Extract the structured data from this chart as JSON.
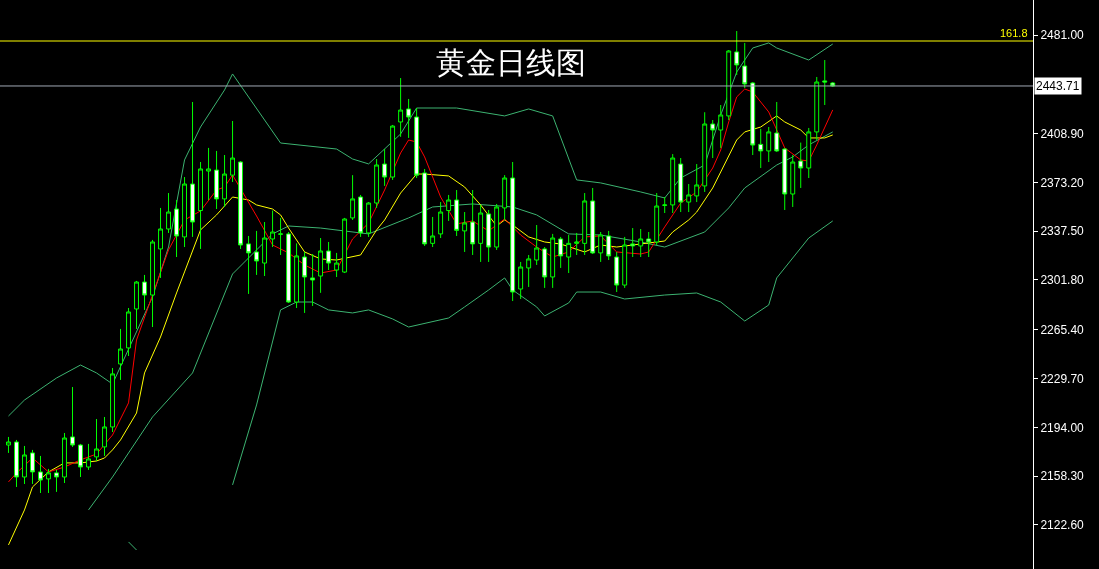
{
  "chart_data": {
    "type": "candlestick",
    "title": "黄金日线图",
    "color": "#00ff00",
    "categories": [
      null,
      null,
      null,
      null,
      null,
      null,
      null,
      null,
      null,
      null,
      null,
      null,
      null,
      null,
      null,
      null,
      null,
      null,
      null,
      null,
      null,
      null,
      null,
      null,
      null,
      null,
      null,
      null,
      null,
      null,
      null,
      null,
      null,
      null,
      null,
      null,
      null,
      null,
      null,
      null,
      null,
      null,
      null,
      null,
      null,
      null,
      null,
      null,
      null,
      null,
      null,
      null,
      null,
      null,
      null,
      null,
      null,
      null,
      null,
      null,
      null,
      null,
      null,
      null,
      null,
      null,
      null,
      null,
      null,
      null,
      null,
      null,
      null,
      null,
      null,
      null,
      null,
      null,
      null,
      null,
      null,
      null,
      null,
      null,
      null,
      null,
      null,
      null,
      null,
      null,
      null,
      null,
      null,
      null,
      null,
      null,
      null,
      null,
      null,
      null,
      null,
      null,
      null,
      null
    ],
    "ohlc": [
      [
        2181.1,
        2187.0,
        2175.3,
        2183.3
      ],
      [
        2183.3,
        2184.8,
        2150.4,
        2157.7
      ],
      [
        2157.7,
        2180.4,
        2152.6,
        2173.8
      ],
      [
        2175.3,
        2177.5,
        2152.6,
        2161.4
      ],
      [
        2161.4,
        2173.1,
        2146.0,
        2155.5
      ],
      [
        2156.3,
        2163.6,
        2146.0,
        2160.7
      ],
      [
        2160.7,
        2162.9,
        2146.8,
        2157.7
      ],
      [
        2157.7,
        2189.9,
        2153.3,
        2186.2
      ],
      [
        2187.0,
        2223.5,
        2179.7,
        2181.1
      ],
      [
        2181.1,
        2181.9,
        2157.7,
        2165.0
      ],
      [
        2165.0,
        2181.9,
        2162.9,
        2170.9
      ],
      [
        2172.4,
        2200.1,
        2169.4,
        2178.2
      ],
      [
        2179.7,
        2201.6,
        2173.1,
        2194.3
      ],
      [
        2194.3,
        2237.4,
        2190.6,
        2233.1
      ],
      [
        2240.4,
        2266.0,
        2228.7,
        2251.3
      ],
      [
        2252.1,
        2281.3,
        2246.2,
        2278.4
      ],
      [
        2280.6,
        2301.1,
        2266.0,
        2300.3
      ],
      [
        2300.3,
        2305.5,
        2279.9,
        2290.8
      ],
      [
        2290.8,
        2331.1,
        2267.4,
        2329.6
      ],
      [
        2324.5,
        2354.5,
        2303.3,
        2339.1
      ],
      [
        2339.1,
        2365.4,
        2336.2,
        2351.5
      ],
      [
        2353.7,
        2360.3,
        2318.6,
        2334.0
      ],
      [
        2333.3,
        2377.1,
        2325.9,
        2372.0
      ],
      [
        2372.0,
        2432.0,
        2333.3,
        2344.2
      ],
      [
        2352.6,
        2388.1,
        2324.5,
        2383.0
      ],
      [
        2381.5,
        2398.4,
        2360.3,
        2383.0
      ],
      [
        2382.2,
        2396.2,
        2353.7,
        2361.1
      ],
      [
        2361.1,
        2393.2,
        2355.2,
        2379.3
      ],
      [
        2378.5,
        2418.1,
        2373.5,
        2391.0
      ],
      [
        2388.1,
        2388.8,
        2324.5,
        2327.4
      ],
      [
        2328.2,
        2334.0,
        2291.6,
        2321.6
      ],
      [
        2322.3,
        2337.7,
        2305.5,
        2315.7
      ],
      [
        2314.2,
        2344.2,
        2304.7,
        2332.5
      ],
      [
        2331.8,
        2352.6,
        2325.9,
        2336.9
      ],
      [
        2335.2,
        2347.2,
        2320.1,
        2335.5
      ],
      [
        2335.5,
        2336.9,
        2285.0,
        2285.7
      ],
      [
        2285.7,
        2328.6,
        2281.3,
        2319.4
      ],
      [
        2318.6,
        2322.3,
        2277.7,
        2304.0
      ],
      [
        2303.3,
        2320.8,
        2282.8,
        2301.8
      ],
      [
        2304.7,
        2332.5,
        2292.4,
        2323.0
      ],
      [
        2323.0,
        2329.6,
        2309.1,
        2314.2
      ],
      [
        2309.1,
        2321.6,
        2304.0,
        2314.2
      ],
      [
        2307.6,
        2347.2,
        2306.9,
        2346.4
      ],
      [
        2347.2,
        2378.5,
        2345.7,
        2361.1
      ],
      [
        2362.5,
        2364.0,
        2333.3,
        2336.2
      ],
      [
        2336.2,
        2358.8,
        2333.3,
        2358.1
      ],
      [
        2358.1,
        2390.3,
        2354.5,
        2385.9
      ],
      [
        2386.6,
        2397.6,
        2370.6,
        2377.1
      ],
      [
        2377.1,
        2415.2,
        2375.0,
        2414.4
      ],
      [
        2417.4,
        2449.5,
        2406.5,
        2426.1
      ],
      [
        2426.9,
        2434.2,
        2405.7,
        2421.0
      ],
      [
        2421.0,
        2427.6,
        2376.4,
        2378.5
      ],
      [
        2380.1,
        2383.0,
        2326.7,
        2328.2
      ],
      [
        2328.6,
        2347.9,
        2325.9,
        2334.0
      ],
      [
        2335.5,
        2358.8,
        2332.5,
        2351.5
      ],
      [
        2352.6,
        2364.0,
        2345.0,
        2360.3
      ],
      [
        2360.3,
        2367.6,
        2334.0,
        2338.1
      ],
      [
        2337.7,
        2351.5,
        2322.3,
        2343.5
      ],
      [
        2344.2,
        2367.6,
        2320.1,
        2328.2
      ],
      [
        2328.6,
        2356.7,
        2315.0,
        2350.8
      ],
      [
        2350.1,
        2353.0,
        2315.0,
        2325.9
      ],
      [
        2325.9,
        2357.4,
        2323.8,
        2355.2
      ],
      [
        2354.5,
        2378.5,
        2345.7,
        2376.4
      ],
      [
        2376.4,
        2388.1,
        2286.4,
        2293.0
      ],
      [
        2295.2,
        2315.0,
        2287.9,
        2311.3
      ],
      [
        2310.6,
        2320.1,
        2296.7,
        2317.2
      ],
      [
        2316.4,
        2342.0,
        2312.8,
        2325.2
      ],
      [
        2324.5,
        2325.9,
        2296.0,
        2304.0
      ],
      [
        2304.0,
        2335.5,
        2296.0,
        2332.5
      ],
      [
        2331.8,
        2333.3,
        2310.6,
        2319.4
      ],
      [
        2318.6,
        2334.7,
        2306.9,
        2328.6
      ],
      [
        2328.6,
        2336.2,
        2320.1,
        2329.6
      ],
      [
        2328.6,
        2365.4,
        2320.1,
        2359.6
      ],
      [
        2359.6,
        2369.1,
        2320.8,
        2321.6
      ],
      [
        2321.6,
        2336.9,
        2315.0,
        2334.7
      ],
      [
        2334.0,
        2337.7,
        2316.4,
        2319.4
      ],
      [
        2318.6,
        2322.3,
        2293.0,
        2298.1
      ],
      [
        2298.1,
        2333.3,
        2296.0,
        2327.4
      ],
      [
        2328.2,
        2339.8,
        2318.6,
        2326.7
      ],
      [
        2326.7,
        2339.1,
        2318.6,
        2331.8
      ],
      [
        2331.8,
        2336.9,
        2318.6,
        2329.6
      ],
      [
        2329.6,
        2365.4,
        2327.4,
        2355.9
      ],
      [
        2356.3,
        2362.5,
        2350.8,
        2356.7
      ],
      [
        2356.7,
        2393.9,
        2350.8,
        2391.0
      ],
      [
        2386.6,
        2391.0,
        2351.5,
        2358.8
      ],
      [
        2358.8,
        2372.0,
        2351.5,
        2364.0
      ],
      [
        2363.3,
        2386.6,
        2358.8,
        2371.3
      ],
      [
        2370.6,
        2424.5,
        2366.2,
        2415.9
      ],
      [
        2415.9,
        2418.8,
        2391.0,
        2411.5
      ],
      [
        2411.5,
        2429.8,
        2398.4,
        2422.5
      ],
      [
        2421.8,
        2470.0,
        2418.8,
        2469.3
      ],
      [
        2468.6,
        2483.9,
        2451.7,
        2459.1
      ],
      [
        2458.3,
        2475.2,
        2442.2,
        2445.2
      ],
      [
        2445.9,
        2446.6,
        2393.2,
        2400.5
      ],
      [
        2401.0,
        2412.3,
        2383.7,
        2396.2
      ],
      [
        2396.2,
        2413.7,
        2388.1,
        2410.1
      ],
      [
        2409.3,
        2432.0,
        2395.4,
        2396.2
      ],
      [
        2397.6,
        2398.4,
        2353.0,
        2364.7
      ],
      [
        2364.7,
        2393.2,
        2355.2,
        2388.1
      ],
      [
        2388.8,
        2402.3,
        2369.1,
        2383.7
      ],
      [
        2383.7,
        2413.0,
        2376.4,
        2410.1
      ],
      [
        2410.1,
        2450.3,
        2404.2,
        2446.6
      ],
      [
        2447.4,
        2462.7,
        2429.8,
        2446.6
      ],
      [
        2445.9,
        2446.6,
        2443.0,
        2443.71
      ]
    ],
    "series": [
      {
        "type": "line",
        "color": "#3cb371",
        "values": [
          2202.3,
          null,
          2214.0,
          null,
          null,
          null,
          2230.1,
          null,
          null,
          2239.6,
          null,
          2233.8,
          null,
          2225.7,
          null,
          null,
          null,
          null,
          2289.4,
          null,
          2325.9,
          null,
          2389.6,
          null,
          2413.7,
          null,
          null,
          2440.8,
          2452.5,
          null,
          null,
          null,
          null,
          null,
          2402.0,
          null,
          null,
          null,
          null,
          null,
          null,
          2397.6,
          null,
          2390.3,
          null,
          2386.7,
          null,
          null,
          null,
          2408.6,
          null,
          2427.6,
          null,
          null,
          null,
          null,
          2427.6,
          null,
          null,
          null,
          null,
          null,
          2421.8,
          null,
          null,
          2426.9,
          null,
          null,
          2421.8,
          null,
          null,
          2375.0,
          null,
          null,
          2372.8,
          null,
          null,
          null,
          null,
          2366.2,
          null,
          null,
          2361.8,
          null,
          2376.4,
          null,
          null,
          2385.9,
          null,
          2422.5,
          null,
          2453.9,
          null,
          2471.5,
          null,
          2475.2,
          2471.5,
          null,
          null,
          null,
          2462.7,
          null,
          null,
          2474.4
        ]
      },
      {
        "type": "line",
        "color": "#3cb371",
        "values": [
          null,
          null,
          null,
          null,
          null,
          null,
          null,
          null,
          null,
          null,
          2133.6,
          null,
          null,
          2157.7,
          null,
          null,
          null,
          null,
          2201.6,
          null,
          null,
          null,
          null,
          2233.8,
          null,
          null,
          null,
          null,
          2306.2,
          null,
          null,
          null,
          null,
          2335.5,
          null,
          2341.3,
          null,
          null,
          null,
          2339.8,
          null,
          null,
          null,
          null,
          null,
          2335.5,
          null,
          null,
          null,
          null,
          2347.2,
          null,
          null,
          2355.2,
          null,
          null,
          null,
          null,
          2357.4,
          null,
          null,
          null,
          null,
          2355.2,
          null,
          null,
          2349.4,
          null,
          null,
          null,
          2335.5,
          null,
          null,
          null,
          2334.7,
          null,
          null,
          null,
          null,
          2329.6,
          null,
          null,
          2325.9,
          null,
          null,
          null,
          null,
          2336.9,
          null,
          null,
          2354.5,
          null,
          2369.1,
          null,
          null,
          null,
          2385.9,
          null,
          2391.8,
          null,
          2400.6,
          null,
          null,
          2410.1
        ]
      },
      {
        "type": "line",
        "color": "#3cb371",
        "values": [
          null,
          null,
          null,
          null,
          null,
          null,
          null,
          null,
          null,
          null,
          null,
          null,
          null,
          null,
          null,
          2110.2,
          2104.3,
          null,
          null,
          null,
          null,
          null,
          null,
          null,
          null,
          null,
          null,
          null,
          null,
          null,
          null,
          null,
          null,
          null,
          null,
          null,
          null,
          null,
          null,
          null,
          null,
          null,
          null,
          null,
          null,
          null,
          null,
          null,
          null,
          null,
          null,
          null,
          null,
          null,
          null,
          null,
          null,
          null,
          null,
          null,
          null,
          null,
          null,
          null,
          null,
          null,
          null,
          null,
          null,
          null,
          null,
          null,
          null,
          null,
          null,
          null,
          null,
          null,
          null,
          null,
          null,
          null,
          null,
          null,
          null,
          null,
          null,
          null,
          null,
          null,
          null,
          null,
          null,
          null,
          null,
          null,
          null,
          null,
          null,
          null,
          null,
          null,
          null,
          null
        ]
      },
      {
        "type": "line",
        "color": "#3cb371",
        "values": [
          null,
          null,
          null,
          null,
          null,
          null,
          null,
          null,
          null,
          null,
          null,
          null,
          null,
          null,
          null,
          null,
          null,
          null,
          null,
          null,
          null,
          null,
          null,
          null,
          null,
          null,
          null,
          null,
          2151.9,
          null,
          null,
          2210.4,
          null,
          null,
          2279.9,
          null,
          2285.7,
          null,
          2285.7,
          null,
          2279.9,
          null,
          null,
          2277.7,
          null,
          2279.9,
          null,
          null,
          2273.3,
          null,
          2267.4,
          null,
          null,
          null,
          null,
          2274.0,
          null,
          2282.1,
          null,
          null,
          2294.5,
          null,
          2303.3,
          2294.5,
          null,
          null,
          2282.1,
          2275.5,
          null,
          null,
          2285.0,
          2293.0,
          null,
          null,
          2293.0,
          null,
          null,
          2287.9,
          null,
          null,
          null,
          null,
          2290.8,
          null,
          null,
          null,
          2292.3,
          null,
          null,
          2285.7,
          null,
          null,
          2271.8,
          null,
          null,
          2283.5,
          2303.3,
          null,
          null,
          null,
          2332.5,
          null,
          null,
          2345.0
        ]
      },
      {
        "type": "line",
        "color": "#ffff00",
        "values": [
          2108.0,
          null,
          2133.6,
          2150.4,
          null,
          2161.4,
          null,
          2168.0,
          null,
          2168.0,
          null,
          2169.4,
          2171.6,
          2177.5,
          2184.8,
          null,
          2204.5,
          2233.8,
          null,
          2260.1,
          null,
          2292.3,
          2307.7,
          null,
          2338.4,
          null,
          2349.4,
          null,
          2362.5,
          null,
          2360.3,
          2356.7,
          null,
          2353.7,
          2349.4,
          2339.8,
          null,
          2322.3,
          null,
          2317.2,
          null,
          2316.4,
          null,
          null,
          2320.1,
          null,
          2338.4,
          2345.7,
          null,
          2365.4,
          null,
          2379.3,
          2379.3,
          null,
          null,
          2377.9,
          null,
          2369.8,
          null,
          2356.7,
          null,
          2341.3,
          2345.7,
          2342.0,
          null,
          2333.3,
          null,
          2329.6,
          null,
          2328.1,
          null,
          null,
          2322.3,
          null,
          2327.4,
          null,
          2325.9,
          null,
          2327.4,
          null,
          2328.9,
          null,
          2330.3,
          2336.9,
          null,
          2345.7,
          2351.5,
          null,
          2369.1,
          2380.8,
          null,
          2404.2,
          2410.1,
          null,
          2413.7,
          null,
          2421.8,
          2417.4,
          null,
          2411.5,
          2405.7,
          null,
          2405.7,
          2407.9
        ]
      },
      {
        "type": "line",
        "color": "#ff0000",
        "values": [
          2154.1,
          2160.6,
          null,
          2171.6,
          null,
          2161.4,
          null,
          2165.0,
          null,
          2170.2,
          null,
          2174.5,
          null,
          2188.4,
          null,
          2211.9,
          2257.9,
          null,
          null,
          null,
          2323.8,
          null,
          2345.7,
          null,
          2352.3,
          null,
          2367.6,
          2369.8,
          2378.6,
          null,
          null,
          2348.6,
          null,
          2327.4,
          null,
          2321.6,
          null,
          2312.8,
          null,
          2306.9,
          null,
          2309.1,
          null,
          2331.8,
          null,
          2343.5,
          null,
          2367.6,
          null,
          2394.7,
          2404.2,
          2402.7,
          2391.8,
          null,
          2362.5,
          null,
          2342.8,
          null,
          2345.0,
          null,
          2337.7,
          null,
          2346.4,
          null,
          2334.7,
          null,
          2325.9,
          null,
          2318.6,
          null,
          2322.3,
          null,
          2333.3,
          null,
          2334.0,
          null,
          2322.3,
          null,
          null,
          2320.8,
          2322.3,
          null,
          2340.6,
          null,
          2358.1,
          null,
          2366.2,
          null,
          2383.7,
          2396.9,
          2417.4,
          2435.7,
          2441.5,
          2439.3,
          null,
          2424.7,
          null,
          2398.4,
          null,
          2389.6,
          2388.8,
          2400.6,
          null,
          2426.2
        ]
      }
    ],
    "ylim": [
      2090.4,
      2506.6
    ],
    "yticks": [
      {
        "value": 2481,
        "label": "2481.00"
      },
      {
        "value": 2408.9,
        "label": "2408.90"
      },
      {
        "value": 2373.2,
        "label": "2373.20"
      },
      {
        "value": 2337.5,
        "label": "2337.50"
      },
      {
        "value": 2301.8,
        "label": "2301.80"
      },
      {
        "value": 2265.4,
        "label": "2265.40"
      },
      {
        "value": 2229.7,
        "label": "2229.70"
      },
      {
        "value": 2194,
        "label": "2194.00"
      },
      {
        "value": 2158.3,
        "label": "2158.30"
      },
      {
        "value": 2122.6,
        "label": "2122.60"
      }
    ],
    "ref_lines": [
      {
        "axis": "y",
        "value": 2443.71,
        "label": "2443.71",
        "color": "#a0a8b4"
      },
      {
        "axis": "y",
        "value": 2476.6,
        "color": "#ffff00"
      }
    ],
    "annotations": [
      {
        "text": "161.8",
        "y": 2476.6
      }
    ],
    "tick_labels": "y",
    "grid": false
  }
}
